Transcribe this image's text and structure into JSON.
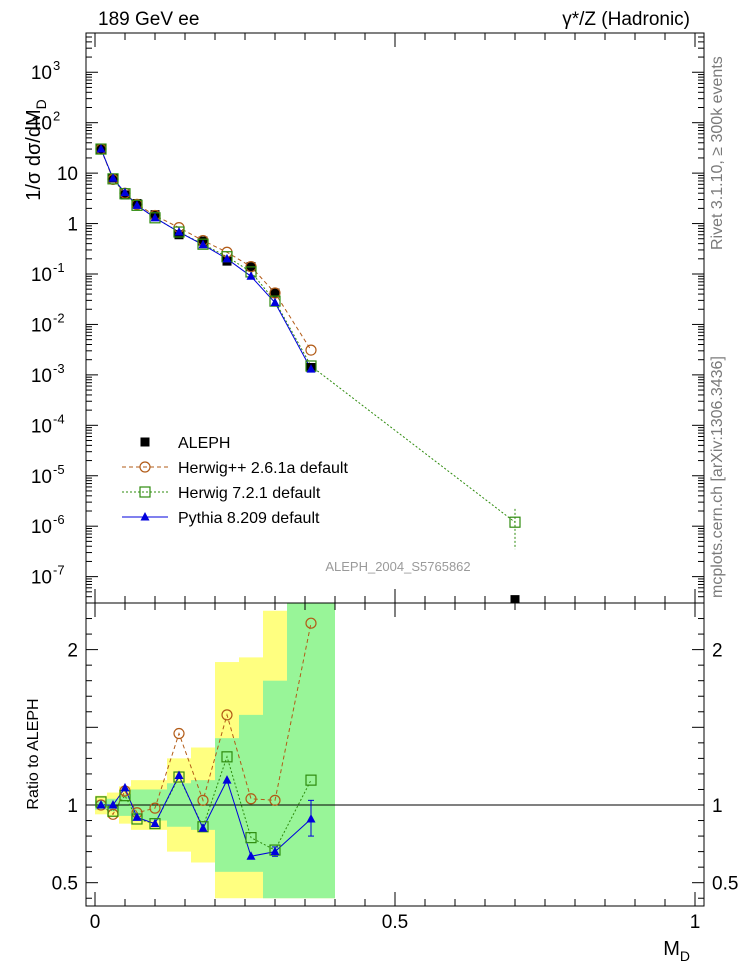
{
  "header": {
    "energy_label": "189 GeV ee",
    "process_label": "γ*/Z (Hadronic)"
  },
  "side": {
    "rivet_label": "Rivet 3.1.10, ≥ 300k events",
    "source_label": "mcplots.cern.ch [arXiv:1306.3436]"
  },
  "watermark": "ALEPH_2004_S5765862",
  "colors": {
    "data": "#000000",
    "herwigpp": "#b25b17",
    "herwig7": "#2e8b0e",
    "pythia": "#0000dd",
    "band_inner": "#98f598",
    "band_outer": "#ffff80"
  },
  "chart_data": [
    {
      "type": "line",
      "panel": "main",
      "title": "",
      "xlabel": "",
      "ylabel": "1/σ dσ/dM_D",
      "yscale": "log",
      "xlim": [
        -0.015,
        1.015
      ],
      "ylim": [
        3e-08,
        6000
      ],
      "ytick_labels": [
        "10^-7",
        "10^-6",
        "10^-5",
        "10^-4",
        "10^-3",
        "10^-2",
        "10^-1",
        "1",
        "10",
        "10^2",
        "10^3"
      ],
      "series": [
        {
          "name": "ALEPH",
          "marker": "filled-square",
          "x": [
            0.01,
            0.03,
            0.05,
            0.07,
            0.1,
            0.14,
            0.18,
            0.22,
            0.26,
            0.3,
            0.36,
            0.7
          ],
          "y": [
            30,
            8.0,
            3.7,
            2.5,
            1.5,
            0.6,
            0.45,
            0.18,
            0.14,
            0.042,
            0.0014,
            3.5e-08
          ]
        },
        {
          "name": "Herwig++ 2.6.1a default",
          "marker": "open-circle",
          "line": "dashed",
          "x": [
            0.01,
            0.03,
            0.05,
            0.07,
            0.1,
            0.14,
            0.18,
            0.22,
            0.26,
            0.3,
            0.36
          ],
          "y": [
            30,
            7.5,
            4.0,
            2.4,
            1.45,
            0.83,
            0.46,
            0.27,
            0.14,
            0.042,
            0.0031
          ]
        },
        {
          "name": "Herwig 7.2.1 default",
          "marker": "open-square",
          "line": "dotted",
          "x": [
            0.01,
            0.03,
            0.05,
            0.07,
            0.1,
            0.14,
            0.18,
            0.22,
            0.26,
            0.3,
            0.36,
            0.7
          ],
          "y": [
            30,
            7.7,
            3.9,
            2.3,
            1.3,
            0.68,
            0.39,
            0.22,
            0.11,
            0.029,
            0.0015,
            1.2e-06
          ],
          "yerr_point": {
            "x": 0.7,
            "low": 3.5e-07,
            "high": 2.2e-06
          }
        },
        {
          "name": "Pythia 8.209 default",
          "marker": "filled-triangle",
          "line": "solid",
          "x": [
            0.01,
            0.03,
            0.05,
            0.07,
            0.1,
            0.14,
            0.18,
            0.22,
            0.26,
            0.3,
            0.36
          ],
          "y": [
            30,
            7.9,
            4.1,
            2.3,
            1.3,
            0.68,
            0.38,
            0.2,
            0.09,
            0.027,
            0.0013
          ]
        }
      ],
      "legend": [
        "ALEPH",
        "Herwig++ 2.6.1a default",
        "Herwig 7.2.1 default",
        "Pythia 8.209 default"
      ],
      "legend_position": "bottom-left"
    },
    {
      "type": "line",
      "panel": "ratio",
      "xlabel": "M_D",
      "ylabel": "Ratio to ALEPH",
      "yscale": "linear",
      "xlim": [
        -0.015,
        1.015
      ],
      "ylim": [
        0.35,
        2.3
      ],
      "xticks": [
        0,
        0.5,
        1
      ],
      "xtick_labels": [
        "0",
        "0.5",
        "1"
      ],
      "yticks": [
        0.5,
        1,
        2
      ],
      "ytick_labels": [
        "0.5",
        "1",
        "2"
      ],
      "reference_line": 1,
      "bands": {
        "bins": [
          [
            0.0,
            0.02
          ],
          [
            0.02,
            0.04
          ],
          [
            0.04,
            0.06
          ],
          [
            0.06,
            0.08
          ],
          [
            0.08,
            0.12
          ],
          [
            0.12,
            0.16
          ],
          [
            0.16,
            0.2
          ],
          [
            0.2,
            0.24
          ],
          [
            0.24,
            0.28
          ],
          [
            0.28,
            0.32
          ],
          [
            0.32,
            0.4
          ]
        ],
        "inner": [
          [
            0.97,
            1.03
          ],
          [
            0.96,
            1.04
          ],
          [
            0.93,
            1.07
          ],
          [
            0.9,
            1.1
          ],
          [
            0.9,
            1.1
          ],
          [
            0.86,
            1.14
          ],
          [
            0.84,
            1.16
          ],
          [
            0.57,
            1.43
          ],
          [
            0.57,
            1.58
          ],
          [
            0.4,
            1.8
          ],
          [
            0.4,
            2.4
          ]
        ],
        "outer": [
          [
            0.94,
            1.06
          ],
          [
            0.92,
            1.08
          ],
          [
            0.88,
            1.12
          ],
          [
            0.84,
            1.16
          ],
          [
            0.84,
            1.16
          ],
          [
            0.7,
            1.3
          ],
          [
            0.63,
            1.37
          ],
          [
            0.4,
            1.92
          ],
          [
            0.4,
            1.95
          ],
          [
            0.4,
            2.25
          ],
          [
            0.4,
            2.4
          ]
        ]
      },
      "series": [
        {
          "name": "Herwig++ 2.6.1a default",
          "marker": "open-circle",
          "line": "dashed",
          "x": [
            0.01,
            0.03,
            0.05,
            0.07,
            0.1,
            0.14,
            0.18,
            0.22,
            0.26,
            0.3,
            0.36
          ],
          "y": [
            1.0,
            0.94,
            1.09,
            0.95,
            0.98,
            1.46,
            1.03,
            1.58,
            1.04,
            1.03,
            2.17
          ]
        },
        {
          "name": "Herwig 7.2.1 default",
          "marker": "open-square",
          "line": "dotted",
          "x": [
            0.01,
            0.03,
            0.05,
            0.07,
            0.1,
            0.14,
            0.18,
            0.22,
            0.26,
            0.3,
            0.36
          ],
          "y": [
            1.02,
            0.96,
            1.06,
            0.91,
            0.88,
            1.18,
            0.86,
            1.31,
            0.79,
            0.71,
            1.16
          ]
        },
        {
          "name": "Pythia 8.209 default",
          "marker": "filled-triangle",
          "line": "solid",
          "x": [
            0.01,
            0.03,
            0.05,
            0.07,
            0.1,
            0.14,
            0.18,
            0.22,
            0.26,
            0.3,
            0.36
          ],
          "y": [
            1.0,
            1.0,
            1.11,
            0.92,
            0.88,
            1.19,
            0.85,
            1.16,
            0.67,
            0.7,
            0.91
          ],
          "yerr": {
            "x": [
              0.3,
              0.36
            ],
            "low": [
              0.67,
              0.8
            ],
            "high": [
              0.73,
              1.03
            ]
          }
        }
      ]
    }
  ]
}
